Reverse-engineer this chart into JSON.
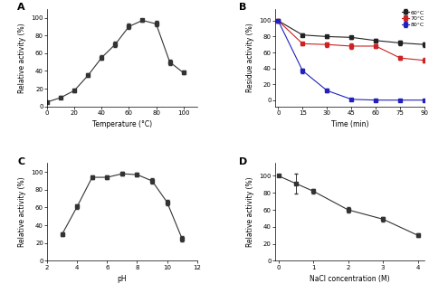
{
  "panel_A": {
    "x": [
      0,
      10,
      20,
      30,
      40,
      50,
      60,
      70,
      80,
      90,
      100
    ],
    "y": [
      5,
      10,
      18,
      35,
      55,
      70,
      90,
      97,
      93,
      50,
      38
    ],
    "yerr": [
      1,
      1.5,
      2,
      2,
      2.5,
      3,
      3,
      2,
      3,
      3,
      2
    ],
    "xlabel": "Temperature (°C)",
    "ylabel": "Relative activity (%)",
    "label": "A",
    "xlim": [
      0,
      110
    ],
    "ylim": [
      0,
      110
    ],
    "xticks": [
      0,
      20,
      40,
      60,
      80,
      100
    ],
    "yticks": [
      0,
      20,
      40,
      60,
      80,
      100
    ]
  },
  "panel_B": {
    "x": [
      0,
      15,
      30,
      45,
      60,
      75,
      90
    ],
    "y_60": [
      100,
      82,
      80,
      79,
      75,
      72,
      70
    ],
    "y_70": [
      100,
      71,
      70,
      68,
      68,
      53,
      50
    ],
    "y_80": [
      100,
      37,
      12,
      1,
      0,
      0,
      0
    ],
    "yerr_60": [
      0.5,
      2,
      2,
      2,
      2,
      3,
      3
    ],
    "yerr_70": [
      0.5,
      2,
      3,
      3,
      2,
      2,
      3
    ],
    "yerr_80": [
      0.5,
      3,
      2,
      1,
      0.5,
      0.5,
      0.5
    ],
    "xlabel": "Time (min)",
    "ylabel": "Residue activity (%)",
    "label": "B",
    "legend": [
      "60°C",
      "70°C",
      "80°C"
    ],
    "colors": [
      "#222222",
      "#cc2222",
      "#2222bb"
    ],
    "xlim": [
      -2,
      90
    ],
    "ylim": [
      -8,
      115
    ],
    "xticks": [
      0,
      15,
      30,
      45,
      60,
      75,
      90
    ],
    "yticks": [
      0,
      20,
      40,
      60,
      80,
      100
    ]
  },
  "panel_C": {
    "x": [
      3,
      4,
      5,
      6,
      7,
      8,
      9,
      10,
      11
    ],
    "y": [
      30,
      61,
      94,
      94,
      98,
      97,
      90,
      66,
      25
    ],
    "yerr": [
      2,
      3,
      2,
      2,
      2,
      2,
      3,
      3,
      3
    ],
    "xlabel": "pH",
    "ylabel": "Relative activity (%)",
    "label": "C",
    "xlim": [
      2,
      12
    ],
    "ylim": [
      0,
      110
    ],
    "xticks": [
      2,
      4,
      6,
      8,
      10,
      12
    ],
    "yticks": [
      0,
      20,
      40,
      60,
      80,
      100
    ]
  },
  "panel_D": {
    "x": [
      0,
      0.5,
      1,
      2,
      3,
      4
    ],
    "y": [
      100,
      91,
      82,
      60,
      49,
      30
    ],
    "yerr": [
      1,
      12,
      3,
      3,
      3,
      2
    ],
    "xlabel": "NaCl concentration (M)",
    "ylabel": "Relative activity (%)",
    "label": "D",
    "xlim": [
      -0.1,
      4.2
    ],
    "ylim": [
      0,
      115
    ],
    "xticks": [
      0,
      1,
      2,
      3,
      4
    ],
    "yticks": [
      0,
      20,
      40,
      60,
      80,
      100
    ]
  },
  "line_color": "#333333",
  "marker": "s",
  "markersize": 2.5,
  "capsize": 1.5,
  "elinewidth": 0.7,
  "linewidth": 0.8
}
